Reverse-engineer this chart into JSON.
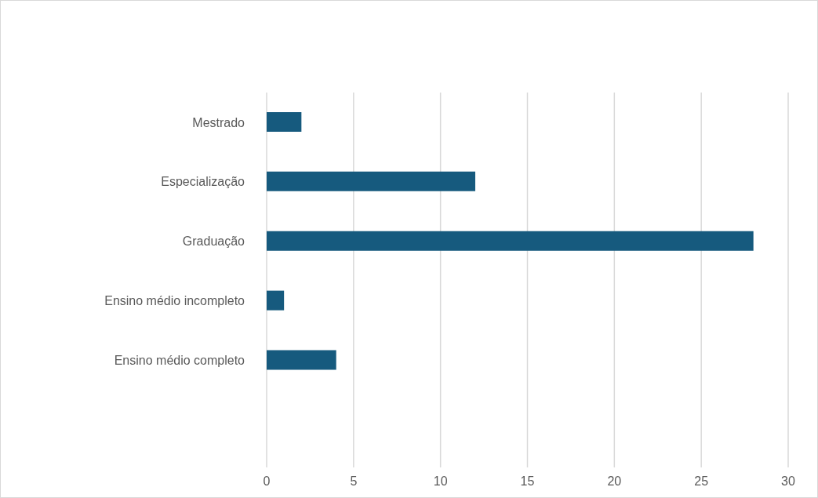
{
  "chart_data": {
    "type": "bar",
    "orientation": "horizontal",
    "categories": [
      "Mestrado",
      "Especialização",
      "Graduação",
      "Ensino médio incompleto",
      "Ensino médio completo"
    ],
    "values": [
      2,
      12,
      28,
      1,
      4
    ],
    "color": "#165a7e",
    "xlim": [
      0,
      30
    ],
    "xticks": [
      0,
      5,
      10,
      15,
      20,
      25,
      30
    ],
    "grid": "x"
  }
}
